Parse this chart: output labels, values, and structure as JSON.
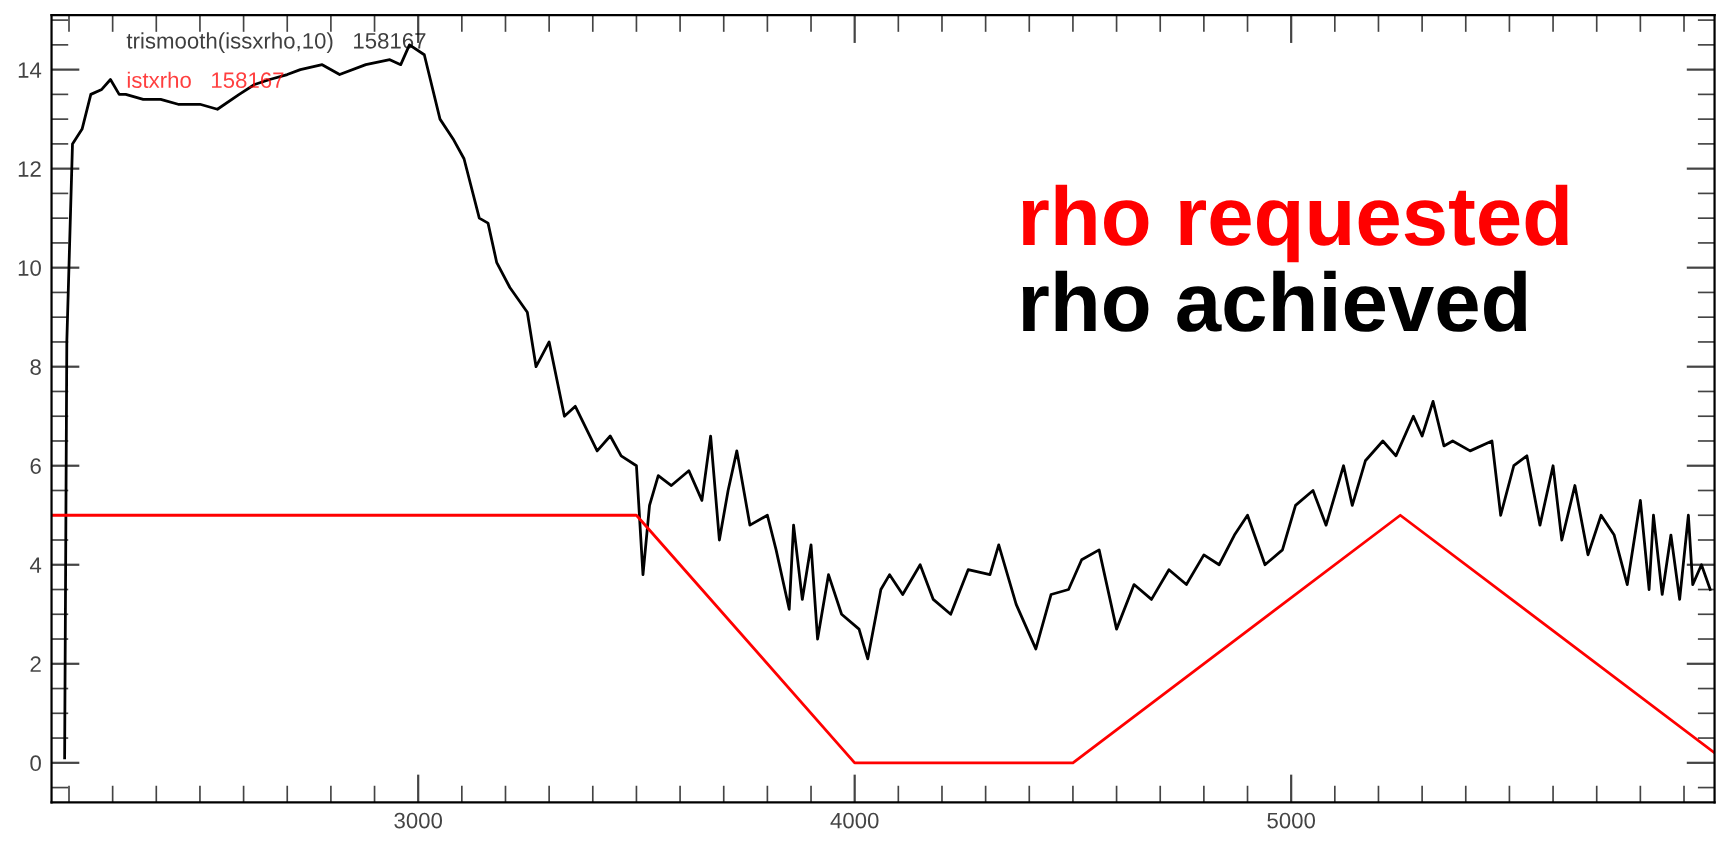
{
  "chart_data": {
    "type": "line",
    "xlim": [
      2160,
      5970
    ],
    "xticks": [
      3000,
      4000,
      5000
    ],
    "ylim": [
      -0.8,
      15.1
    ],
    "yticks": [
      0,
      2,
      4,
      6,
      8,
      10,
      12,
      14
    ],
    "grid": false,
    "legend": "top right",
    "marker": "none",
    "line_style": "solid",
    "annotations": [
      "trismooth(issxrho,10)   158167",
      "istxrho   158167"
    ],
    "series": [
      {
        "name": "rho achieved",
        "color": "#000000",
        "x": [
          2190,
          2195,
          2208,
          2230,
          2250,
          2275,
          2295,
          2315,
          2330,
          2370,
          2410,
          2450,
          2500,
          2540,
          2590,
          2625,
          2660,
          2700,
          2730,
          2780,
          2820,
          2880,
          2935,
          2960,
          2980,
          3014,
          3050,
          3080,
          3105,
          3140,
          3160,
          3180,
          3210,
          3250,
          3270,
          3300,
          3335,
          3360,
          3410,
          3440,
          3465,
          3500,
          3515,
          3530,
          3550,
          3580,
          3620,
          3650,
          3670,
          3690,
          3710,
          3730,
          3760,
          3800,
          3820,
          3850,
          3860,
          3880,
          3900,
          3915,
          3940,
          3970,
          4010,
          4030,
          4060,
          4080,
          4110,
          4150,
          4180,
          4220,
          4260,
          4310,
          4330,
          4370,
          4415,
          4450,
          4490,
          4520,
          4560,
          4600,
          4640,
          4680,
          4720,
          4760,
          4800,
          4835,
          4870,
          4900,
          4940,
          4980,
          5010,
          5050,
          5080,
          5120,
          5140,
          5170,
          5210,
          5240,
          5280,
          5300,
          5325,
          5350,
          5370,
          5410,
          5460,
          5480,
          5510,
          5540,
          5570,
          5600,
          5620,
          5650,
          5680,
          5710,
          5740,
          5770,
          5800,
          5820,
          5830,
          5850,
          5870,
          5890,
          5910,
          5920,
          5940,
          5960
        ],
        "values": [
          0.1,
          8.5,
          12.5,
          12.8,
          13.5,
          13.6,
          13.8,
          13.5,
          13.5,
          13.4,
          13.4,
          13.3,
          13.3,
          13.2,
          13.5,
          13.7,
          13.8,
          13.9,
          14.0,
          14.1,
          13.9,
          14.1,
          14.2,
          14.1,
          14.5,
          14.3,
          13.0,
          12.6,
          12.2,
          11.0,
          10.9,
          10.1,
          9.6,
          9.1,
          8.0,
          8.5,
          7.0,
          7.2,
          6.3,
          6.6,
          6.2,
          6.0,
          3.8,
          5.2,
          5.8,
          5.6,
          5.9,
          5.3,
          6.6,
          4.5,
          5.5,
          6.3,
          4.8,
          5.0,
          4.3,
          3.1,
          4.8,
          3.3,
          4.4,
          2.5,
          3.8,
          3.0,
          2.7,
          2.1,
          3.5,
          3.8,
          3.4,
          4.0,
          3.3,
          3.0,
          3.9,
          3.8,
          4.4,
          3.2,
          2.3,
          3.4,
          3.5,
          4.1,
          4.3,
          2.7,
          3.6,
          3.3,
          3.9,
          3.6,
          4.2,
          4.0,
          4.6,
          5.0,
          4.0,
          4.3,
          5.2,
          5.5,
          4.8,
          6.0,
          5.2,
          6.1,
          6.5,
          6.2,
          7.0,
          6.6,
          7.3,
          6.4,
          6.5,
          6.3,
          6.5,
          5.0,
          6.0,
          6.2,
          4.8,
          6.0,
          4.5,
          5.6,
          4.2,
          5.0,
          4.6,
          3.6,
          5.3,
          3.5,
          5.0,
          3.4,
          4.6,
          3.3,
          5.0,
          3.6,
          4.0,
          3.5
        ]
      },
      {
        "name": "rho requested",
        "color": "#ff0000",
        "x": [
          2160,
          3500,
          4000,
          4500,
          5250,
          5970
        ],
        "values": [
          5,
          5,
          0,
          0,
          5,
          0.2
        ]
      }
    ]
  }
}
